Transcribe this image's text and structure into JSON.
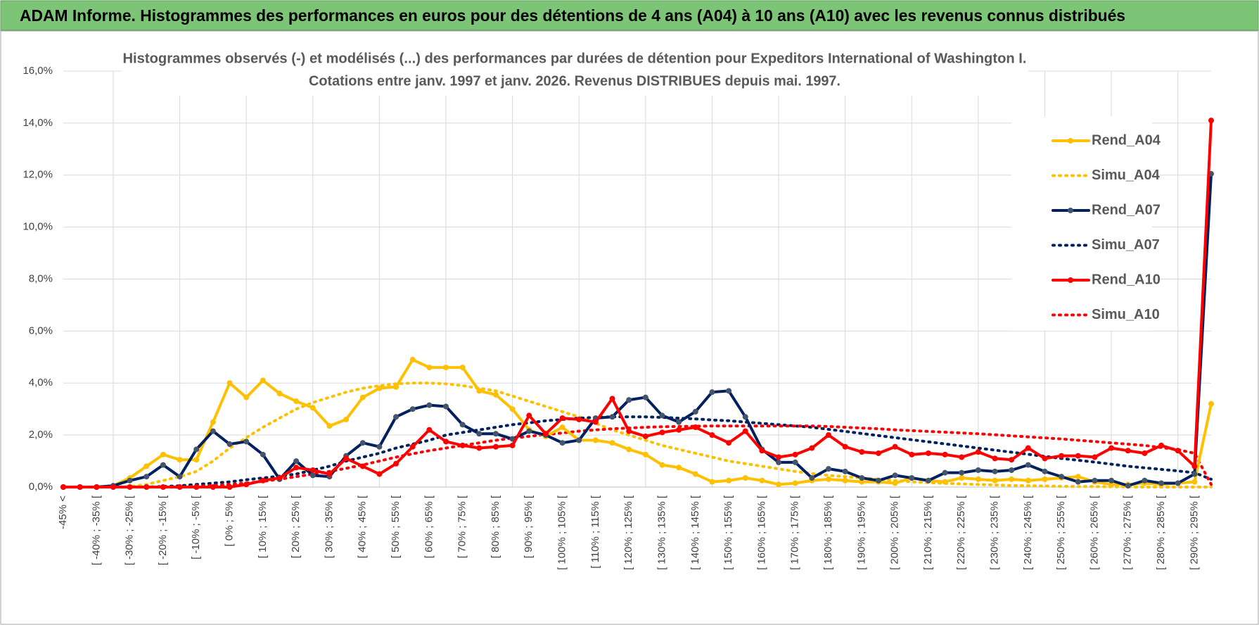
{
  "chart_data": {
    "type": "line",
    "title": "ADAM Informe. Histogrammes des performances en euros pour des détentions de 4 ans (A04) à 10 ans (A10) avec les revenus connus distribués",
    "subtitle": [
      "Histogrammes observés (-) et modélisés (...) des performances par durées de détention pour Expeditors International of Washington I.",
      "Cotations entre janv. 1997 et janv. 2026. Revenus DISTRIBUES depuis mai. 1997."
    ],
    "categories": [
      "-45% <",
      null,
      "[ -40% ; -35% [",
      null,
      "[ -30% ; -25% [",
      null,
      "[ -20% ; -15% [",
      null,
      "[ -10% ; -5% [",
      null,
      "[ 0% ; 5% [",
      null,
      "[ 10% ; 15% [",
      null,
      "[ 20% ; 25% [",
      null,
      "[ 30% ; 35% [",
      null,
      "[ 40% ; 45% [",
      null,
      "[ 50% ; 55% [",
      null,
      "[ 60% ; 65% [",
      null,
      "[ 70% ; 75% [",
      null,
      "[ 80% ; 85% [",
      null,
      "[ 90% ; 95% [",
      null,
      "[ 100% ; 105% [",
      null,
      "[ 110% ; 115% [",
      null,
      "[ 120% ; 125% [",
      null,
      "[ 130% ; 135% [",
      null,
      "[ 140% ; 145% [",
      null,
      "[ 150% ; 155% [",
      null,
      "[ 160% ; 165% [",
      null,
      "[ 170% ; 175% [",
      null,
      "[ 180% ; 185% [",
      null,
      "[ 190% ; 195% [",
      null,
      "[ 200% ; 205% [",
      null,
      "[ 210% ; 215% [",
      null,
      "[ 220% ; 225% [",
      null,
      "[ 230% ; 235% [",
      null,
      "[ 240% ; 245% [",
      null,
      "[ 250% ; 255% [",
      null,
      "[ 260% ; 265% [",
      null,
      "[ 270% ; 275% [",
      null,
      "[ 280% ; 285% [",
      null,
      "[ 290% ; 295% [",
      null
    ],
    "ylim": [
      0,
      16
    ],
    "yticks": [
      {
        "value": 0,
        "label": "0,0%"
      },
      {
        "value": 2,
        "label": "2,0%"
      },
      {
        "value": 4,
        "label": "4,0%"
      },
      {
        "value": 6,
        "label": "6,0%"
      },
      {
        "value": 8,
        "label": "8,0%"
      },
      {
        "value": 10,
        "label": "10,0%"
      },
      {
        "value": 12,
        "label": "12,0%"
      },
      {
        "value": 14,
        "label": "14,0%"
      },
      {
        "value": 16,
        "label": "16,0%"
      }
    ],
    "grid": true,
    "legend": "right",
    "series": [
      {
        "name": "Rend_A04",
        "color": "#ffc000",
        "dash": "solid",
        "markers": true,
        "values": [
          0,
          0,
          0,
          0.05,
          0.35,
          0.8,
          1.25,
          1.05,
          1.05,
          2.5,
          4.0,
          3.45,
          4.1,
          3.6,
          3.3,
          3.05,
          2.35,
          2.6,
          3.45,
          3.8,
          3.85,
          4.9,
          4.6,
          4.6,
          4.6,
          3.7,
          3.55,
          3.0,
          2.2,
          1.95,
          2.3,
          1.8,
          1.8,
          1.7,
          1.45,
          1.25,
          0.85,
          0.75,
          0.5,
          0.2,
          0.25,
          0.35,
          0.25,
          0.1,
          0.15,
          0.25,
          0.3,
          0.25,
          0.2,
          0.2,
          0.15,
          0.35,
          0.25,
          0.2,
          0.35,
          0.3,
          0.25,
          0.3,
          0.25,
          0.3,
          0.35,
          0.4,
          0.2,
          0.1,
          0.1,
          0.15,
          0.1,
          0.15,
          0.2,
          3.2
        ]
      },
      {
        "name": "Simu_A04",
        "color": "#ffc000",
        "dash": "dotted",
        "markers": false,
        "values": [
          0,
          0,
          0,
          0,
          0.02,
          0.1,
          0.25,
          0.4,
          0.6,
          1.0,
          1.5,
          1.9,
          2.3,
          2.65,
          3.0,
          3.25,
          3.45,
          3.65,
          3.8,
          3.9,
          3.97,
          4.0,
          4.0,
          3.97,
          3.9,
          3.8,
          3.7,
          3.5,
          3.3,
          3.1,
          2.9,
          2.7,
          2.45,
          2.2,
          2.0,
          1.8,
          1.6,
          1.45,
          1.3,
          1.15,
          1.0,
          0.9,
          0.8,
          0.7,
          0.6,
          0.52,
          0.45,
          0.4,
          0.35,
          0.3,
          0.25,
          0.2,
          0.17,
          0.14,
          0.12,
          0.1,
          0.08,
          0.06,
          0.05,
          0.04,
          0.03,
          0.02,
          0.02,
          0.01,
          0.01,
          0,
          0,
          0,
          0,
          0
        ]
      },
      {
        "name": "Rend_A07",
        "color": "#002060",
        "dash": "solid",
        "markers": true,
        "marker_color": "#44546a",
        "values": [
          0,
          0,
          0,
          0.05,
          0.25,
          0.4,
          0.85,
          0.4,
          1.45,
          2.15,
          1.65,
          1.75,
          1.25,
          0.3,
          1.0,
          0.45,
          0.4,
          1.2,
          1.7,
          1.55,
          2.7,
          3.0,
          3.15,
          3.1,
          2.4,
          2.05,
          2.05,
          1.85,
          2.15,
          2.0,
          1.7,
          1.8,
          2.65,
          2.7,
          3.35,
          3.45,
          2.75,
          2.5,
          2.9,
          3.65,
          3.7,
          2.7,
          1.45,
          0.95,
          0.95,
          0.35,
          0.7,
          0.6,
          0.35,
          0.25,
          0.45,
          0.35,
          0.25,
          0.55,
          0.55,
          0.65,
          0.6,
          0.65,
          0.85,
          0.6,
          0.4,
          0.2,
          0.25,
          0.25,
          0.05,
          0.25,
          0.15,
          0.15,
          0.5,
          12.05
        ]
      },
      {
        "name": "Simu_A07",
        "color": "#002060",
        "dash": "dotted",
        "markers": false,
        "values": [
          0,
          0,
          0,
          0,
          0,
          0,
          0.02,
          0.05,
          0.1,
          0.15,
          0.2,
          0.28,
          0.35,
          0.42,
          0.5,
          0.65,
          0.8,
          1.0,
          1.15,
          1.3,
          1.5,
          1.65,
          1.8,
          2.0,
          2.1,
          2.2,
          2.3,
          2.4,
          2.47,
          2.55,
          2.6,
          2.65,
          2.68,
          2.7,
          2.7,
          2.7,
          2.68,
          2.65,
          2.62,
          2.58,
          2.55,
          2.5,
          2.45,
          2.4,
          2.35,
          2.3,
          2.22,
          2.14,
          2.06,
          1.98,
          1.9,
          1.82,
          1.74,
          1.66,
          1.58,
          1.5,
          1.42,
          1.34,
          1.26,
          1.18,
          1.1,
          1.03,
          0.96,
          0.88,
          0.8,
          0.74,
          0.68,
          0.62,
          0.55,
          0.3
        ]
      },
      {
        "name": "Rend_A10",
        "color": "#ff0000",
        "dash": "solid",
        "markers": true,
        "values": [
          0,
          0,
          0,
          0,
          0,
          0,
          0,
          0,
          0,
          0,
          0,
          0.1,
          0.25,
          0.35,
          0.75,
          0.65,
          0.5,
          1.1,
          0.8,
          0.5,
          0.9,
          1.55,
          2.2,
          1.75,
          1.6,
          1.5,
          1.55,
          1.6,
          2.75,
          2.05,
          2.65,
          2.6,
          2.5,
          3.4,
          2.15,
          1.95,
          2.1,
          2.2,
          2.3,
          2.0,
          1.7,
          2.15,
          1.4,
          1.15,
          1.25,
          1.5,
          2.0,
          1.55,
          1.35,
          1.3,
          1.55,
          1.25,
          1.3,
          1.25,
          1.15,
          1.35,
          1.1,
          1.05,
          1.5,
          1.1,
          1.2,
          1.2,
          1.15,
          1.5,
          1.4,
          1.3,
          1.6,
          1.4,
          0.8,
          14.1
        ]
      },
      {
        "name": "Simu_A10",
        "color": "#ff0000",
        "dash": "dotted",
        "markers": false,
        "values": [
          0,
          0,
          0,
          0,
          0,
          0,
          0,
          0,
          0.03,
          0.06,
          0.1,
          0.15,
          0.22,
          0.3,
          0.4,
          0.5,
          0.6,
          0.72,
          0.85,
          1.0,
          1.15,
          1.28,
          1.4,
          1.5,
          1.6,
          1.7,
          1.8,
          1.88,
          1.95,
          2.02,
          2.08,
          2.15,
          2.2,
          2.24,
          2.27,
          2.3,
          2.32,
          2.33,
          2.34,
          2.35,
          2.35,
          2.35,
          2.35,
          2.35,
          2.35,
          2.35,
          2.33,
          2.3,
          2.27,
          2.24,
          2.2,
          2.17,
          2.14,
          2.11,
          2.08,
          2.05,
          2.01,
          1.97,
          1.93,
          1.89,
          1.85,
          1.8,
          1.75,
          1.7,
          1.65,
          1.6,
          1.52,
          1.44,
          1.3,
          0.1
        ]
      }
    ]
  }
}
